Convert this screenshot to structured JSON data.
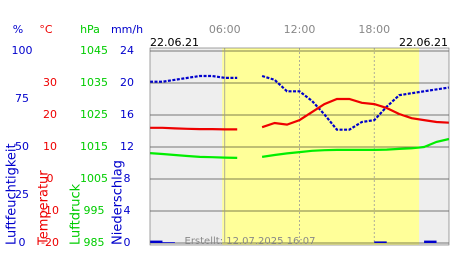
{
  "chart_data": {
    "type": "line",
    "date_start": "22.06.21",
    "date_end": "22.06.21",
    "footer": "Erstellt: 12.07.2025 16:07",
    "xlim": [
      0,
      24
    ],
    "xticks": [
      {
        "value": 6,
        "label": "06:00"
      },
      {
        "value": 12,
        "label": "12:00"
      },
      {
        "value": 18,
        "label": "18:00"
      }
    ],
    "daylight": [
      5.8,
      21.6
    ],
    "axes": [
      {
        "unit": "%",
        "title": "Luftfeuchtigkeit",
        "color": "#0000cc",
        "ylim": [
          0,
          100
        ],
        "yticks": [
          0,
          25,
          50,
          75,
          100
        ]
      },
      {
        "unit": "°C",
        "title": "Temperatur",
        "color": "#ee0000",
        "ylim": [
          -20,
          40
        ],
        "yticks": [
          -20,
          -10,
          0,
          10,
          20,
          30
        ]
      },
      {
        "unit": "hPa",
        "title": "Luftdruck",
        "color": "#00cc00",
        "ylim": [
          985,
          1045
        ],
        "yticks": [
          985,
          995,
          1005,
          1015,
          1025,
          1035,
          1045
        ]
      },
      {
        "unit": "mm/h",
        "title": "Niederschlag",
        "color": "#0000cc",
        "ylim": [
          0,
          24
        ],
        "yticks": [
          0,
          4,
          8,
          12,
          16,
          20,
          24
        ]
      }
    ],
    "x": [
      0,
      1,
      2,
      3,
      4,
      5,
      6,
      7,
      8,
      9,
      10,
      11,
      12,
      13,
      14,
      15,
      16,
      17,
      18,
      19,
      20,
      21,
      22,
      23,
      24
    ],
    "series": [
      {
        "name": "Luftfeuchtigkeit",
        "axis": 0,
        "kind": "line",
        "color": "#0000cc",
        "values": [
          84,
          84,
          85,
          86,
          87,
          87,
          86,
          86,
          null,
          87,
          85,
          79,
          79,
          74,
          67,
          59,
          59,
          63,
          64,
          71,
          77,
          78,
          79,
          80,
          81
        ]
      },
      {
        "name": "Temperatur",
        "axis": 1,
        "kind": "line",
        "color": "#ee0000",
        "values": [
          16,
          16,
          15.8,
          15.7,
          15.6,
          15.6,
          15.5,
          15.5,
          null,
          16.2,
          17.5,
          17,
          18.4,
          20.9,
          23.4,
          25,
          25,
          23.8,
          23.4,
          22.2,
          20.3,
          19,
          18.4,
          17.8,
          17.6
        ]
      },
      {
        "name": "Luftdruck",
        "axis": 2,
        "kind": "line",
        "color": "#00ee00",
        "values": [
          1013.1,
          1012.8,
          1012.5,
          1012.2,
          1011.9,
          1011.8,
          1011.7,
          1011.6,
          null,
          1011.9,
          1012.5,
          1013,
          1013.4,
          1013.8,
          1014,
          1014.1,
          1014.1,
          1014.1,
          1014.1,
          1014.2,
          1014.4,
          1014.6,
          1015,
          1016.6,
          1017.5
        ]
      },
      {
        "name": "Niederschlag",
        "axis": 3,
        "kind": "bar",
        "color": "#0000cc",
        "values": [
          0.3,
          0.1,
          0,
          0,
          0,
          0,
          0,
          0,
          0,
          0,
          0,
          0,
          0,
          0,
          0,
          0,
          0,
          0,
          0.2,
          0,
          0,
          0,
          0.3,
          0,
          0
        ]
      }
    ]
  }
}
